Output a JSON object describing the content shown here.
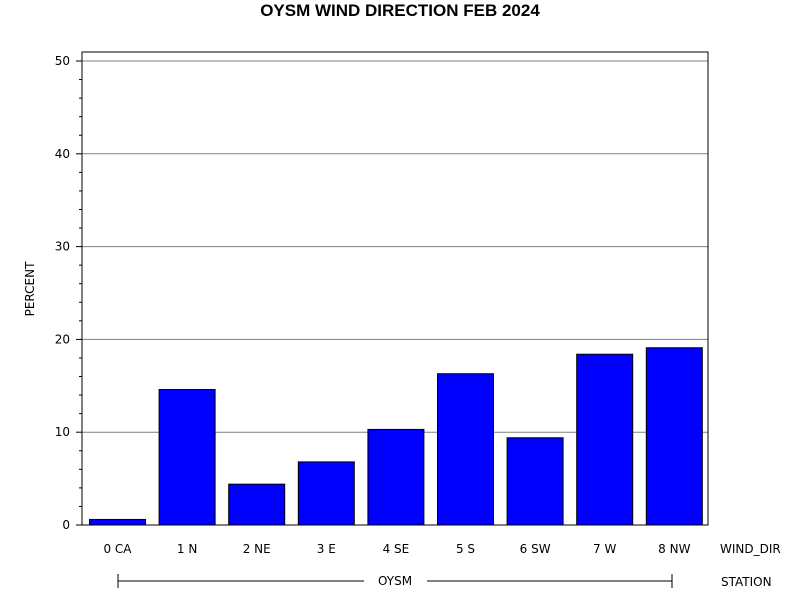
{
  "chart_data": {
    "type": "bar",
    "title": "OYSM WIND DIRECTION FEB 2024",
    "xlabel": "WIND_DIR",
    "ylabel": "PERCENT",
    "group_label": "STATION",
    "group_value": "OYSM",
    "categories": [
      "0 CA",
      "1 N",
      "2 NE",
      "3 E",
      "4 SE",
      "5 S",
      "6 SW",
      "7 W",
      "8 NW"
    ],
    "values": [
      0.6,
      14.6,
      4.4,
      6.8,
      10.3,
      16.3,
      9.4,
      18.4,
      19.1
    ],
    "ylim": [
      0,
      50
    ],
    "yticks": [
      0,
      10,
      20,
      30,
      40,
      50
    ],
    "grid": true,
    "bar_color": "#0000ff",
    "legend": "none"
  }
}
